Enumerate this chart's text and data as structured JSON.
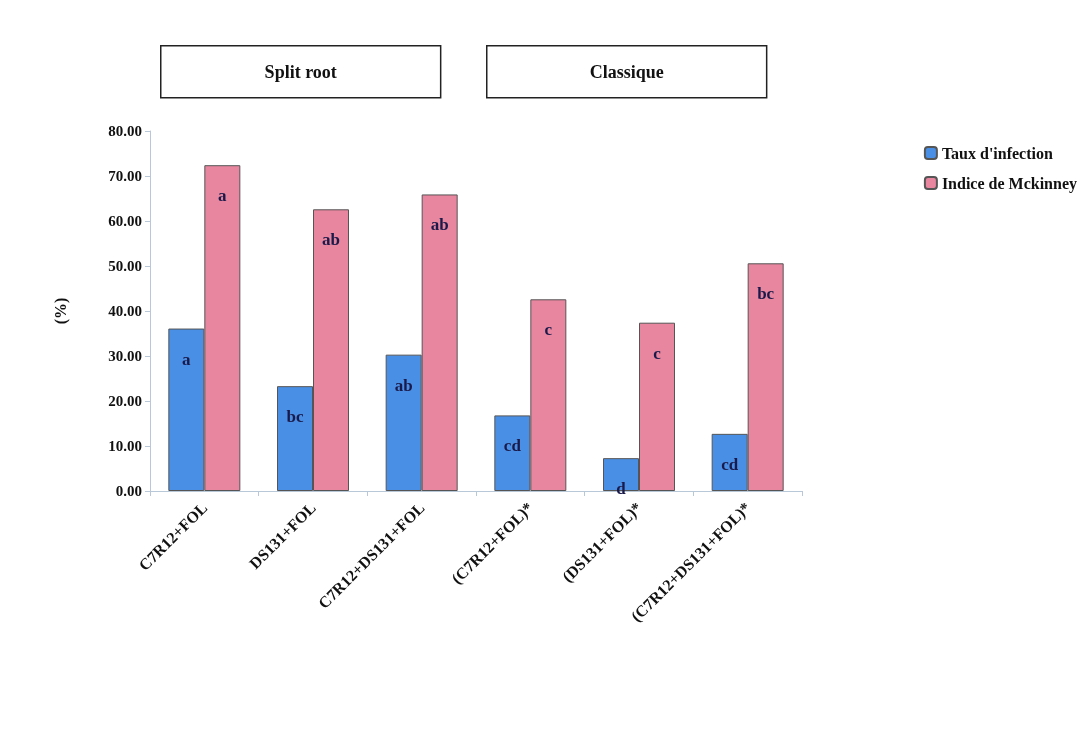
{
  "chart_data": {
    "type": "bar",
    "ylabel": "(%)",
    "annotations": [
      "Split root",
      "Classique"
    ],
    "categories": [
      "C7R12+FOL",
      "DS131+FOL",
      "C7R12+DS131+FOL",
      "(C7R12+FOL)*",
      "(DS131+FOL)*",
      "(C7R12+DS131+FOL)*"
    ],
    "series": [
      {
        "name": "Taux d'infection",
        "color": "#4a8fe6",
        "values": [
          36.1,
          23.3,
          30.3,
          16.8,
          7.3,
          12.7
        ],
        "value_labels": [
          "a",
          "bc",
          "ab",
          "cd",
          "d",
          "cd"
        ]
      },
      {
        "name": "Indice de Mckinney",
        "color": "#e8859f",
        "values": [
          72.4,
          62.6,
          65.9,
          42.6,
          37.4,
          50.6
        ],
        "value_labels": [
          "a",
          "ab",
          "ab",
          "c",
          "c",
          "bc"
        ]
      }
    ],
    "ylim": [
      0,
      80
    ],
    "yticks": [
      {
        "value": 0,
        "label": "0.00"
      },
      {
        "value": 10,
        "label": "10.00"
      },
      {
        "value": 20,
        "label": "20.00"
      },
      {
        "value": 30,
        "label": "30.00"
      },
      {
        "value": 40,
        "label": "40.00"
      },
      {
        "value": 50,
        "label": "50.00"
      },
      {
        "value": 60,
        "label": "60.00"
      },
      {
        "value": 70,
        "label": "70.00"
      },
      {
        "value": 80,
        "label": "80.00"
      }
    ],
    "grid": false,
    "legend": "top right"
  }
}
